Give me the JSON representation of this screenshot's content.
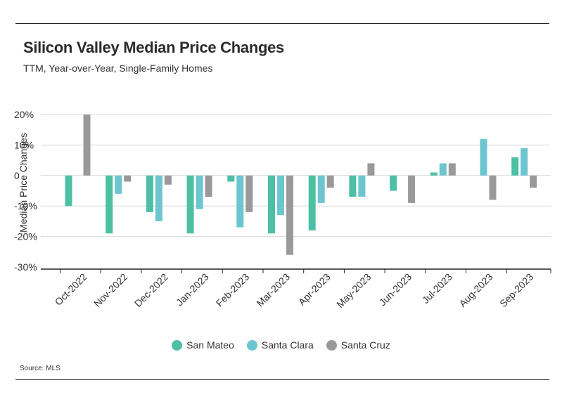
{
  "header": {
    "title": "Silicon Valley Median Price Changes",
    "subtitle": "TTM, Year-over-Year, Single-Family Homes"
  },
  "footer": {
    "source": "Source: MLS"
  },
  "colors": {
    "San Mateo": "#4dbfa5",
    "Santa Clara": "#6cc6d0",
    "Santa Cruz": "#999999",
    "grid": "#d9d9d9",
    "axis": "#222222"
  },
  "chart_data": {
    "type": "bar",
    "title": "Silicon Valley Median Price Changes",
    "subtitle": "TTM, Year-over-Year, Single-Family Homes",
    "xlabel": "",
    "ylabel": "Median Price Changes",
    "ylim": [
      -30,
      20
    ],
    "yticks": [
      20,
      10,
      0,
      -10,
      -20,
      -30
    ],
    "ytick_labels": [
      "20%",
      "10%",
      "0",
      "-10%",
      "-20%",
      "-30%"
    ],
    "grid": true,
    "legend_position": "bottom",
    "categories": [
      "Oct-2022",
      "Nov-2022",
      "Dec-2022",
      "Jan-2023",
      "Feb-2023",
      "Mar-2023",
      "Apr-2023",
      "May-2023",
      "Jun-2023",
      "Jul-2023",
      "Aug-2023",
      "Sep-2023"
    ],
    "series": [
      {
        "name": "San Mateo",
        "values": [
          -10,
          -19,
          -12,
          -19,
          -2,
          -19,
          -18,
          -7,
          -5,
          1,
          0,
          6
        ]
      },
      {
        "name": "Santa Clara",
        "values": [
          0,
          -6,
          -15,
          -11,
          -17,
          -13,
          -9,
          -7,
          0,
          4,
          12,
          9
        ]
      },
      {
        "name": "Santa Cruz",
        "values": [
          20,
          -2,
          -3,
          -7,
          -12,
          -26,
          -4,
          4,
          -9,
          4,
          -8,
          -4
        ]
      }
    ]
  }
}
